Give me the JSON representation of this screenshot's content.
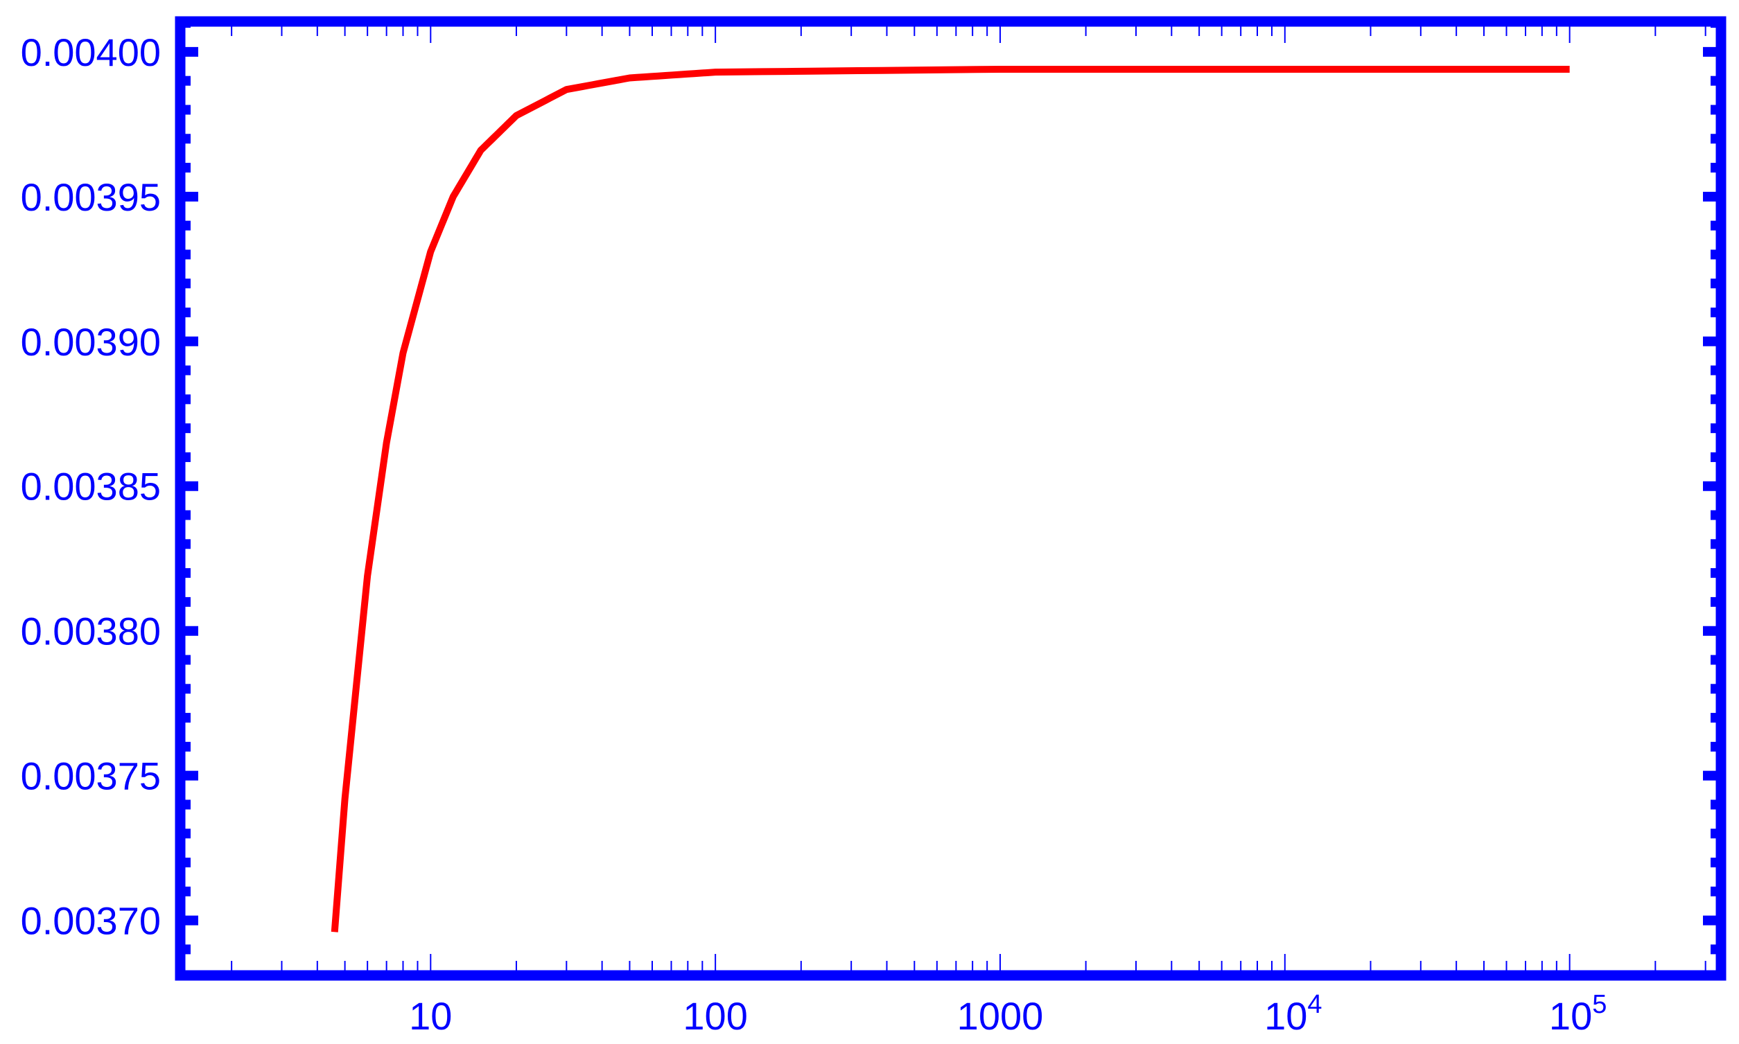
{
  "chart_data": {
    "type": "line",
    "title": "",
    "xlabel": "",
    "ylabel": "",
    "x_scale": "log",
    "xlim": [
      1.32,
      340000
    ],
    "ylim": [
      0.003681,
      0.0040105
    ],
    "grid": false,
    "frame": true,
    "x_ticks": [
      {
        "value": 10,
        "label": "10",
        "sup": ""
      },
      {
        "value": 100,
        "label": "100",
        "sup": ""
      },
      {
        "value": 1000,
        "label": "1000",
        "sup": ""
      },
      {
        "value": 10000,
        "label": "10",
        "sup": "4"
      },
      {
        "value": 100000,
        "label": "10",
        "sup": "5"
      }
    ],
    "y_ticks": [
      {
        "value": 0.0037,
        "label": "0.00370"
      },
      {
        "value": 0.00375,
        "label": "0.00375"
      },
      {
        "value": 0.0038,
        "label": "0.00380"
      },
      {
        "value": 0.00385,
        "label": "0.00385"
      },
      {
        "value": 0.0039,
        "label": "0.00390"
      },
      {
        "value": 0.00395,
        "label": "0.00395"
      },
      {
        "value": 0.004,
        "label": "0.00400"
      }
    ],
    "series": [
      {
        "color": "#ff0000",
        "x": [
          4.6,
          5,
          6,
          7,
          8,
          10,
          12,
          15,
          20,
          30,
          50,
          100,
          1000,
          10000,
          100000
        ],
        "y": [
          0.003696,
          0.003742,
          0.003819,
          0.003865,
          0.003896,
          0.003931,
          0.00395,
          0.003966,
          0.003978,
          0.003987,
          0.003991,
          0.003993,
          0.003994,
          0.003994,
          0.003994
        ]
      }
    ],
    "colors": {
      "axes": "#0000ff",
      "line": "#ff0000"
    }
  }
}
